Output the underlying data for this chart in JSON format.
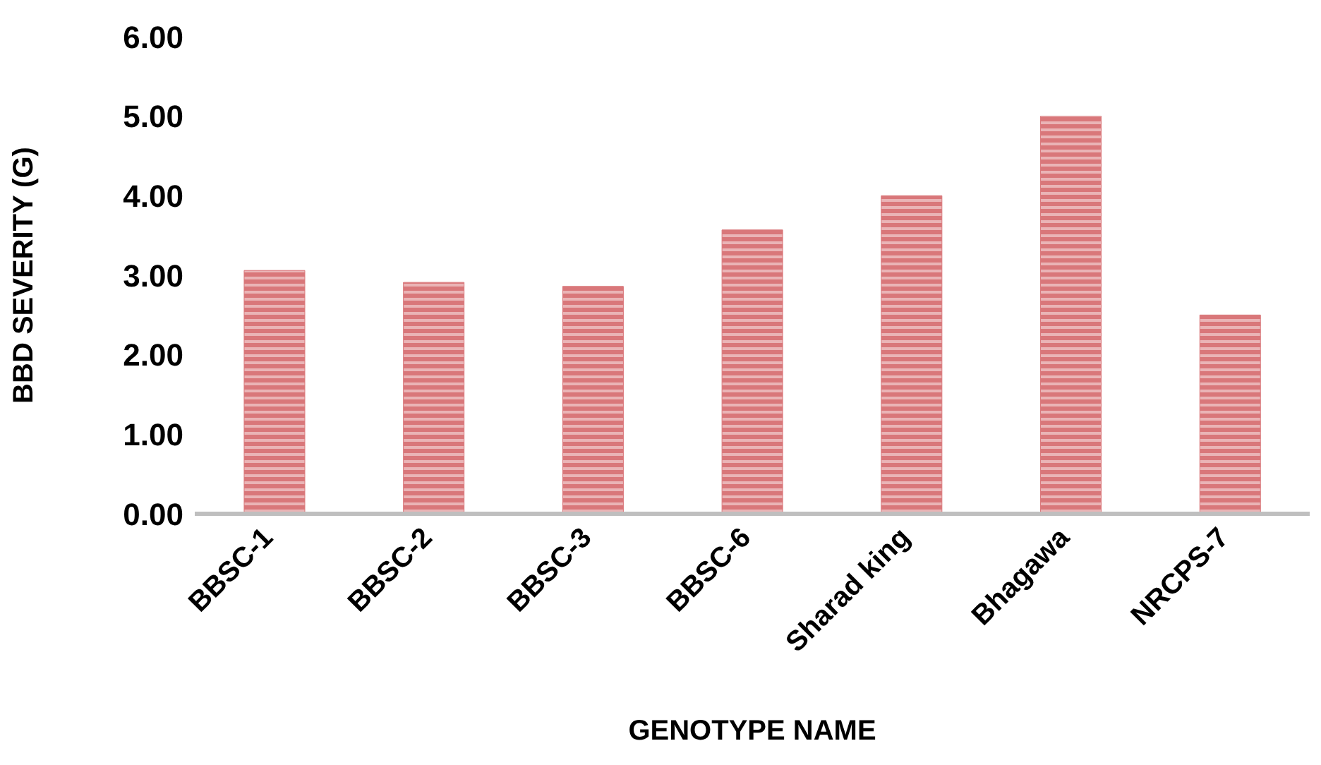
{
  "chart_data": {
    "type": "bar",
    "xlabel": "GENOTYPE NAME",
    "ylabel": "BBD SEVERITY (G)",
    "categories": [
      "BBSC-1",
      "BBSC-2",
      "BBSC-3",
      "BBSC-6",
      "Sharad king",
      "Bhagawa",
      "NRCPS-7"
    ],
    "values": [
      3.06,
      2.91,
      2.86,
      3.57,
      4.0,
      5.0,
      2.5
    ],
    "color": "#d9777a",
    "ylim": [
      0,
      6
    ],
    "yticks": [
      {
        "value": 0,
        "label": "0.00"
      },
      {
        "value": 1,
        "label": "1.00"
      },
      {
        "value": 2,
        "label": "2.00"
      },
      {
        "value": 3,
        "label": "3.00"
      },
      {
        "value": 4,
        "label": "4.00"
      },
      {
        "value": 5,
        "label": "5.00"
      },
      {
        "value": 6,
        "label": "6.00"
      }
    ],
    "grid": false,
    "legend": false
  }
}
